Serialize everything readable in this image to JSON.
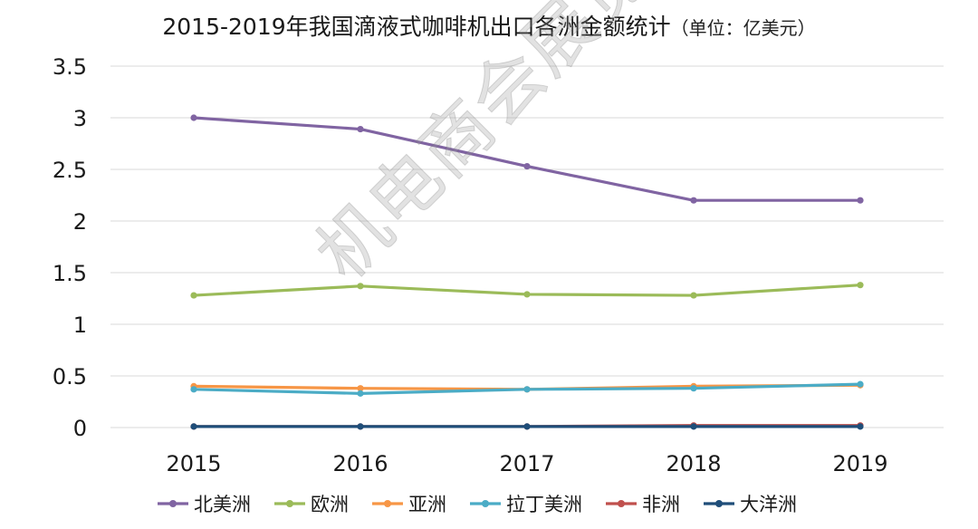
{
  "chart_data": {
    "type": "line",
    "title": "2015-2019年我国滴液式咖啡机出口各洲金额统计",
    "title_unit": "（单位：亿美元）",
    "x": [
      "2015",
      "2016",
      "2017",
      "2018",
      "2019"
    ],
    "y_ticks": [
      "0",
      "0.5",
      "1",
      "1.5",
      "2",
      "2.5",
      "3",
      "3.5"
    ],
    "ylim": [
      0,
      3.5
    ],
    "grid": true,
    "legend_position": "bottom",
    "series": [
      {
        "name": "北美洲",
        "color": "#8064a2",
        "values": [
          3.0,
          2.89,
          2.53,
          2.2,
          2.2
        ]
      },
      {
        "name": "欧洲",
        "color": "#9bbb59",
        "values": [
          1.28,
          1.37,
          1.29,
          1.28,
          1.38
        ]
      },
      {
        "name": "亚洲",
        "color": "#f79646",
        "values": [
          0.4,
          0.38,
          0.37,
          0.4,
          0.41
        ]
      },
      {
        "name": "拉丁美洲",
        "color": "#4bacc6",
        "values": [
          0.37,
          0.33,
          0.37,
          0.38,
          0.42
        ]
      },
      {
        "name": "非洲",
        "color": "#c0504d",
        "values": [
          0.01,
          0.01,
          0.01,
          0.02,
          0.02
        ]
      },
      {
        "name": "大洋洲",
        "color": "#1f4e79",
        "values": [
          0.01,
          0.01,
          0.01,
          0.01,
          0.01
        ]
      }
    ],
    "watermark": "机电商会展览"
  }
}
